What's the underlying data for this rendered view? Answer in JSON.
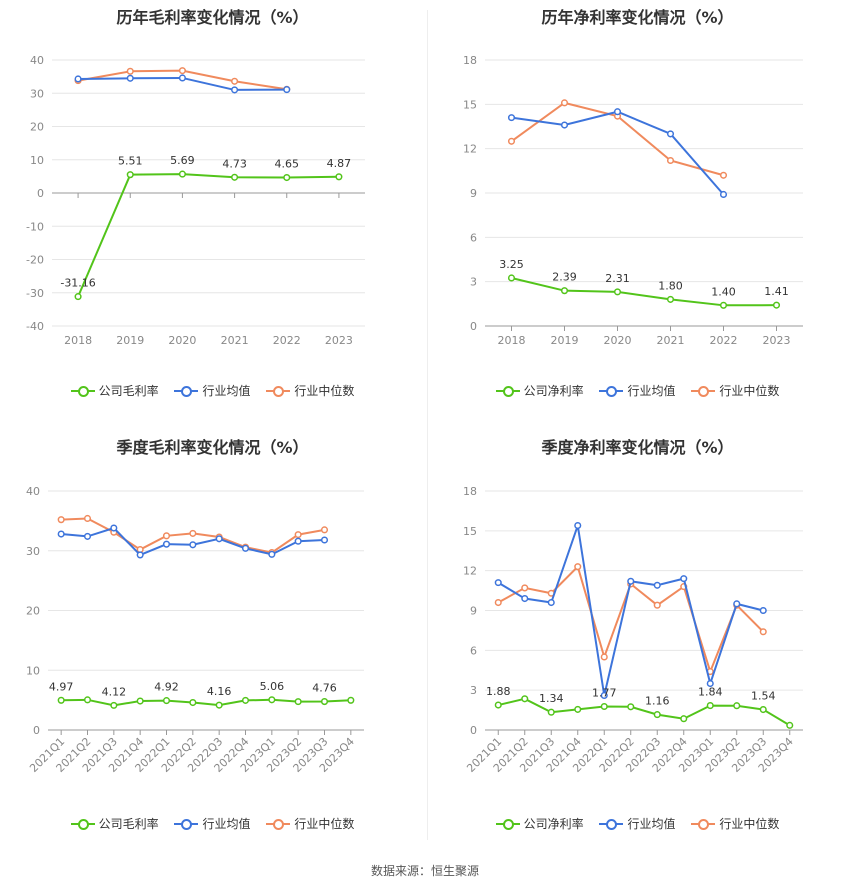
{
  "colors": {
    "company": "#52c41a",
    "industry_avg": "#3d74db",
    "industry_median": "#f08a5d"
  },
  "legend": {
    "gross": [
      "公司毛利率",
      "行业均值",
      "行业中位数"
    ],
    "net": [
      "公司净利率",
      "行业均值",
      "行业中位数"
    ]
  },
  "source": "数据来源：恒生聚源",
  "chart_data": [
    {
      "title": "历年毛利率变化情况（%）",
      "type": "line",
      "categories": [
        "2018",
        "2019",
        "2020",
        "2021",
        "2022",
        "2023"
      ],
      "ylim": [
        -40,
        40
      ],
      "yticks": [
        -40,
        -30,
        -20,
        -10,
        0,
        10,
        20,
        30,
        40
      ],
      "grid": true,
      "legend_position": "bottom",
      "series": [
        {
          "name": "公司毛利率",
          "values": [
            -31.16,
            5.51,
            5.69,
            4.73,
            4.65,
            4.87
          ],
          "labels": [
            "-31.16",
            "5.51",
            "5.69",
            "4.73",
            "4.65",
            "4.87"
          ]
        },
        {
          "name": "行业均值",
          "values": [
            34.3,
            34.5,
            34.6,
            31.0,
            31.1,
            null
          ]
        },
        {
          "name": "行业中位数",
          "values": [
            33.8,
            36.6,
            36.8,
            33.6,
            31.2,
            null
          ]
        }
      ]
    },
    {
      "title": "历年净利率变化情况（%）",
      "type": "line",
      "categories": [
        "2018",
        "2019",
        "2020",
        "2021",
        "2022",
        "2023"
      ],
      "ylim": [
        0,
        18
      ],
      "yticks": [
        0,
        3,
        6,
        9,
        12,
        15,
        18
      ],
      "grid": true,
      "legend_position": "bottom",
      "series": [
        {
          "name": "公司净利率",
          "values": [
            3.25,
            2.39,
            2.31,
            1.8,
            1.4,
            1.41
          ],
          "labels": [
            "3.25",
            "2.39",
            "2.31",
            "1.80",
            "1.40",
            "1.41"
          ]
        },
        {
          "name": "行业均值",
          "values": [
            14.1,
            13.6,
            14.5,
            13.0,
            8.9,
            null
          ]
        },
        {
          "name": "行业中位数",
          "values": [
            12.5,
            15.1,
            14.2,
            11.2,
            10.2,
            null
          ]
        }
      ]
    },
    {
      "title": "季度毛利率变化情况（%）",
      "type": "line",
      "categories": [
        "2021Q1",
        "2021Q2",
        "2021Q3",
        "2021Q4",
        "2022Q1",
        "2022Q2",
        "2022Q3",
        "2022Q4",
        "2023Q1",
        "2023Q2",
        "2023Q3",
        "2023Q4"
      ],
      "ylim": [
        0,
        40
      ],
      "yticks": [
        0,
        10,
        20,
        30,
        40
      ],
      "grid": true,
      "legend_position": "bottom",
      "series": [
        {
          "name": "公司毛利率",
          "values": [
            4.97,
            5.05,
            4.12,
            4.85,
            4.92,
            4.6,
            4.16,
            4.95,
            5.06,
            4.75,
            4.76,
            4.97
          ],
          "labels": [
            "4.97",
            "",
            "4.12",
            "",
            "4.92",
            "",
            "4.16",
            "",
            "5.06",
            "",
            "4.76",
            ""
          ]
        },
        {
          "name": "行业均值",
          "values": [
            32.8,
            32.4,
            33.8,
            29.3,
            31.1,
            31.0,
            32.0,
            30.4,
            29.4,
            31.6,
            31.8,
            null
          ]
        },
        {
          "name": "行业中位数",
          "values": [
            35.2,
            35.4,
            33.1,
            30.2,
            32.5,
            32.9,
            32.3,
            30.6,
            29.7,
            32.7,
            33.5,
            null
          ]
        }
      ]
    },
    {
      "title": "季度净利率变化情况（%）",
      "type": "line",
      "categories": [
        "2021Q1",
        "2021Q2",
        "2021Q3",
        "2021Q4",
        "2022Q1",
        "2022Q2",
        "2022Q3",
        "2022Q4",
        "2023Q1",
        "2023Q2",
        "2023Q3",
        "2023Q4"
      ],
      "ylim": [
        0,
        18
      ],
      "yticks": [
        0,
        3,
        6,
        9,
        12,
        15,
        18
      ],
      "grid": true,
      "legend_position": "bottom",
      "series": [
        {
          "name": "公司净利率",
          "values": [
            1.88,
            2.35,
            1.34,
            1.55,
            1.77,
            1.75,
            1.16,
            0.85,
            1.84,
            1.83,
            1.54,
            0.35
          ],
          "labels": [
            "1.88",
            "",
            "1.34",
            "",
            "1.77",
            "",
            "1.16",
            "",
            "1.84",
            "",
            "1.54",
            ""
          ]
        },
        {
          "name": "行业均值",
          "values": [
            11.1,
            9.9,
            9.6,
            15.4,
            2.6,
            11.2,
            10.9,
            11.4,
            3.5,
            9.5,
            9.0,
            null
          ]
        },
        {
          "name": "行业中位数",
          "values": [
            9.6,
            10.7,
            10.3,
            12.3,
            5.5,
            11.0,
            9.4,
            10.8,
            4.4,
            9.4,
            7.4,
            null
          ]
        }
      ]
    }
  ]
}
